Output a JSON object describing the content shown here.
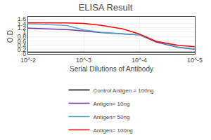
{
  "chart_data": {
    "type": "line",
    "title": "ELISA Result",
    "xlabel": "Serial Dilutions of Antibody",
    "ylabel": "O.D.",
    "log": "x",
    "xlim": [
      0.01,
      1e-05
    ],
    "xticks": [
      {
        "value": 0.01,
        "label": "10^-2"
      },
      {
        "value": 0.001,
        "label": "10^-3"
      },
      {
        "value": 0.0001,
        "label": "10^-4"
      },
      {
        "value": 1e-05,
        "label": "10^-5"
      }
    ],
    "ylim": [
      0,
      1.7
    ],
    "yticks": [
      0,
      0.2,
      0.4,
      0.6,
      0.8,
      1,
      1.2,
      1.4,
      1.6
    ],
    "grid": true,
    "legend": "bottom",
    "series": [
      {
        "name": "Control Antigen = 100ng",
        "color": "#000000",
        "x": [
          0.01,
          0.001,
          0.0005,
          0.0001,
          1e-05
        ],
        "values": [
          0.09,
          0.09,
          0.09,
          0.09,
          0.09
        ]
      },
      {
        "name": "Antigen= 10ng",
        "color": "#7030A0",
        "x": [
          0.01,
          0.005,
          0.002,
          0.001,
          0.0005,
          0.0002,
          0.0001,
          5e-05,
          2e-05,
          1e-05
        ],
        "values": [
          1.18,
          1.16,
          1.12,
          1.05,
          0.98,
          0.92,
          0.88,
          0.55,
          0.3,
          0.22
        ]
      },
      {
        "name": "Antigen= 50ng",
        "color": "#4BACC6",
        "x": [
          0.01,
          0.005,
          0.002,
          0.001,
          0.0005,
          0.0002,
          0.0001,
          5e-05,
          2e-05,
          1e-05
        ],
        "values": [
          1.38,
          1.36,
          1.3,
          1.1,
          1.0,
          0.93,
          0.88,
          0.58,
          0.32,
          0.24
        ]
      },
      {
        "name": "Antigen= 100ng",
        "color": "#FF0000",
        "x": [
          0.01,
          0.005,
          0.002,
          0.001,
          0.0005,
          0.0002,
          0.0001,
          5e-05,
          2e-05,
          1e-05
        ],
        "values": [
          1.43,
          1.43,
          1.42,
          1.4,
          1.32,
          1.15,
          0.92,
          0.58,
          0.4,
          0.33
        ]
      }
    ]
  }
}
